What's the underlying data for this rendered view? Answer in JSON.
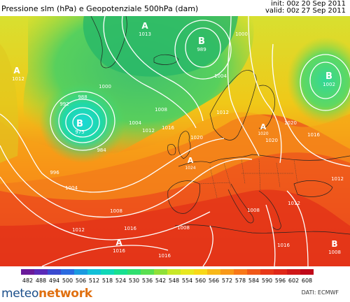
{
  "header": {
    "title": "Pressione slm (hPa) e Geopotenziale 500hPa (dam)",
    "init": "init: 00z 20 Sep 2011",
    "valid": "valid: 00z 27 Sep 2011"
  },
  "map": {
    "pressure_centers": [
      {
        "type": "A",
        "value": "1013",
        "label_id": "high-greenland"
      },
      {
        "type": "A",
        "value": "1012",
        "label_id": "high-west"
      },
      {
        "type": "B",
        "value": "989",
        "label_id": "low-norwegian-sea"
      },
      {
        "type": "B",
        "value": "975",
        "label_id": "low-atlantic"
      },
      {
        "type": "B",
        "value": "1002",
        "label_id": "low-russia"
      },
      {
        "type": "A",
        "value": "1020",
        "label_id": "high-scandinavia"
      },
      {
        "type": "A",
        "value": "1024",
        "label_id": "high-biscay"
      },
      {
        "type": "A",
        "value": "1016",
        "label_id": "high-south"
      },
      {
        "type": "B",
        "value": "1008",
        "label_id": "low-southeast"
      }
    ],
    "isobar_labels": [
      "1000",
      "1004",
      "1008",
      "1012",
      "1016",
      "1020",
      "988",
      "992",
      "996",
      "984",
      "1024"
    ]
  },
  "scale": {
    "values": [
      "482",
      "488",
      "494",
      "500",
      "506",
      "512",
      "518",
      "524",
      "530",
      "536",
      "542",
      "548",
      "554",
      "560",
      "566",
      "572",
      "578",
      "584",
      "590",
      "596",
      "602",
      "608"
    ],
    "colors": [
      "#6a1a9a",
      "#5a2ab8",
      "#3a4ad0",
      "#2a6ae0",
      "#1a9ae0",
      "#12c0d8",
      "#10d8b8",
      "#18e090",
      "#30e070",
      "#5ae050",
      "#90e038",
      "#c8e828",
      "#e8e820",
      "#f8d818",
      "#f8b818",
      "#f89818",
      "#f87818",
      "#f05818",
      "#e83818",
      "#e02818",
      "#d01818",
      "#c00818"
    ]
  },
  "footer": {
    "logo_a": "meteo",
    "logo_b": "network",
    "credit": "DATI: ECMWF"
  }
}
